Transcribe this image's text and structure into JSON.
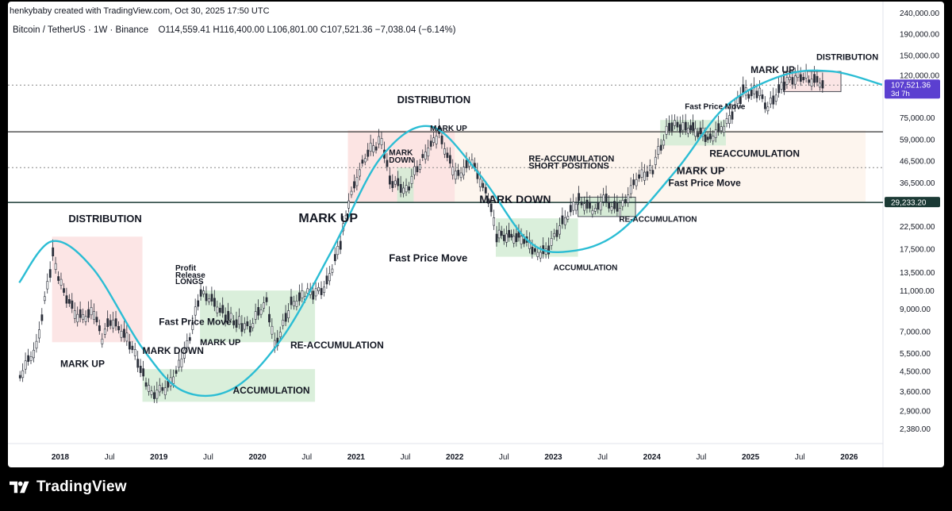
{
  "header": {
    "credit": "henkybaby created with TradingView.com, Oct 30, 2025 17:50 UTC",
    "symbol": "Bitcoin / TetherUS · 1W · Binance",
    "ohlc": "O114,559.41 H116,400.00 L106,801.00 C107,521.36 −7,038.04 (−6.14%)"
  },
  "footer": {
    "brand": "TradingView"
  },
  "colors": {
    "up": "#26a69a",
    "down": "#ef5350",
    "candle": "#2a2e39",
    "curve": "#2bbdd4",
    "green_zone": "#c8e6c9",
    "red_zone": "#fbd5d5",
    "current_price_tag": "#5b3fd0",
    "level_tag": "#1b3a35"
  },
  "chart_data": {
    "type": "line",
    "title": "",
    "xlabel": "",
    "ylabel": "",
    "y_scale": "log",
    "ylim": [
      2000,
      250000
    ],
    "x_range": [
      "2017-08",
      "2026-06"
    ],
    "x_ticks": [
      "2018",
      "Jul",
      "2019",
      "Jul",
      "2020",
      "Jul",
      "2021",
      "Jul",
      "2022",
      "Jul",
      "2023",
      "Jul",
      "2024",
      "Jul",
      "2025",
      "Jul",
      "2026"
    ],
    "y_ticks": [
      "240,000.00",
      "190,000.00",
      "150,000.00",
      "120,000.00",
      "75,000.00",
      "59,000.00",
      "46,500.00",
      "36,500.00",
      "22,500.00",
      "17,500.00",
      "13,500.00",
      "11,000.00",
      "9,000.00",
      "7,000.00",
      "5,500.00",
      "4,500.00",
      "3,600.00",
      "2,900.00",
      "2,380.00"
    ],
    "y_tick_values": [
      240000,
      190000,
      150000,
      120000,
      75000,
      59000,
      46500,
      36500,
      22500,
      17500,
      13500,
      11000,
      9000,
      7000,
      5500,
      4500,
      3600,
      2900,
      2380
    ],
    "price_tags": [
      {
        "value": 107521.36,
        "label": "107,521.36",
        "sub": "3d 7h",
        "color": "#5b3fd0"
      },
      {
        "value": 29233.2,
        "label": "29,233.20",
        "color": "#1b3a35"
      }
    ],
    "series": [
      {
        "kind": "weekly_close_path",
        "points": [
          {
            "d": "2017-08",
            "p": 4200
          },
          {
            "d": "2017-10",
            "p": 5800
          },
          {
            "d": "2017-12",
            "p": 16000
          },
          {
            "d": "2018-01",
            "p": 11500
          },
          {
            "d": "2018-02",
            "p": 9500
          },
          {
            "d": "2018-03",
            "p": 8000
          },
          {
            "d": "2018-05",
            "p": 8400
          },
          {
            "d": "2018-06",
            "p": 6400
          },
          {
            "d": "2018-07",
            "p": 7800
          },
          {
            "d": "2018-09",
            "p": 6500
          },
          {
            "d": "2018-11",
            "p": 4300
          },
          {
            "d": "2018-12",
            "p": 3400
          },
          {
            "d": "2019-02",
            "p": 3700
          },
          {
            "d": "2019-04",
            "p": 5200
          },
          {
            "d": "2019-06",
            "p": 10500
          },
          {
            "d": "2019-07",
            "p": 10000
          },
          {
            "d": "2019-09",
            "p": 8200
          },
          {
            "d": "2019-11",
            "p": 7400
          },
          {
            "d": "2019-12",
            "p": 7200
          },
          {
            "d": "2020-02",
            "p": 9800
          },
          {
            "d": "2020-03",
            "p": 5800
          },
          {
            "d": "2020-05",
            "p": 9300
          },
          {
            "d": "2020-07",
            "p": 10500
          },
          {
            "d": "2020-09",
            "p": 10800
          },
          {
            "d": "2020-11",
            "p": 18000
          },
          {
            "d": "2020-12",
            "p": 28900
          },
          {
            "d": "2021-02",
            "p": 48000
          },
          {
            "d": "2021-04",
            "p": 58000
          },
          {
            "d": "2021-05",
            "p": 37000
          },
          {
            "d": "2021-07",
            "p": 33000
          },
          {
            "d": "2021-09",
            "p": 47000
          },
          {
            "d": "2021-11",
            "p": 62000
          },
          {
            "d": "2022-01",
            "p": 38000
          },
          {
            "d": "2022-03",
            "p": 45000
          },
          {
            "d": "2022-05",
            "p": 30000
          },
          {
            "d": "2022-06",
            "p": 20000
          },
          {
            "d": "2022-09",
            "p": 19500
          },
          {
            "d": "2022-11",
            "p": 16500
          },
          {
            "d": "2022-12",
            "p": 16600
          },
          {
            "d": "2023-02",
            "p": 23000
          },
          {
            "d": "2023-04",
            "p": 29500
          },
          {
            "d": "2023-06",
            "p": 26000
          },
          {
            "d": "2023-07",
            "p": 29800
          },
          {
            "d": "2023-09",
            "p": 26000
          },
          {
            "d": "2023-11",
            "p": 37000
          },
          {
            "d": "2024-01",
            "p": 42000
          },
          {
            "d": "2024-03",
            "p": 68000
          },
          {
            "d": "2024-05",
            "p": 67000
          },
          {
            "d": "2024-08",
            "p": 59000
          },
          {
            "d": "2024-10",
            "p": 69000
          },
          {
            "d": "2024-12",
            "p": 98000
          },
          {
            "d": "2025-02",
            "p": 96000
          },
          {
            "d": "2025-03",
            "p": 82000
          },
          {
            "d": "2025-04",
            "p": 94000
          },
          {
            "d": "2025-05",
            "p": 108000
          },
          {
            "d": "2025-07",
            "p": 118000
          },
          {
            "d": "2025-08",
            "p": 113000
          },
          {
            "d": "2025-10",
            "p": 107521
          }
        ]
      }
    ],
    "cycle_curve": [
      {
        "d": "2017-08",
        "p": 12000
      },
      {
        "d": "2017-12",
        "p": 19000
      },
      {
        "d": "2018-05",
        "p": 14000
      },
      {
        "d": "2018-11",
        "p": 5800
      },
      {
        "d": "2019-04",
        "p": 3600
      },
      {
        "d": "2019-10",
        "p": 3700
      },
      {
        "d": "2020-04",
        "p": 6500
      },
      {
        "d": "2020-10",
        "p": 17000
      },
      {
        "d": "2021-04",
        "p": 48000
      },
      {
        "d": "2021-10",
        "p": 68000
      },
      {
        "d": "2022-04",
        "p": 40000
      },
      {
        "d": "2022-10",
        "p": 19000
      },
      {
        "d": "2023-03",
        "p": 17000
      },
      {
        "d": "2023-09",
        "p": 21000
      },
      {
        "d": "2024-04",
        "p": 42000
      },
      {
        "d": "2024-10",
        "p": 85000
      },
      {
        "d": "2025-05",
        "p": 120000
      },
      {
        "d": "2025-11",
        "p": 125000
      },
      {
        "d": "2026-05",
        "p": 108000
      }
    ],
    "zones": [
      {
        "from": "2017-12",
        "to": "2018-11",
        "low": 6200,
        "high": 20000,
        "color": "red"
      },
      {
        "from": "2018-11",
        "to": "2020-08",
        "low": 3200,
        "high": 4600,
        "color": "green"
      },
      {
        "from": "2019-06",
        "to": "2020-08",
        "low": 6200,
        "high": 11000,
        "color": "green"
      },
      {
        "from": "2020-12",
        "to": "2021-06",
        "low": 29233,
        "high": 65000,
        "color": "red"
      },
      {
        "from": "2021-06",
        "to": "2022-01",
        "low": 29233,
        "high": 65000,
        "color": "red"
      },
      {
        "from": "2020-12",
        "to": "2026-03",
        "low": 29233,
        "high": 65000,
        "color": "band"
      },
      {
        "from": "2021-06",
        "to": "2021-08",
        "low": 29233,
        "high": 43000,
        "color": "green"
      },
      {
        "from": "2022-06",
        "to": "2023-04",
        "low": 16000,
        "high": 24500,
        "color": "green"
      },
      {
        "from": "2023-04",
        "to": "2023-11",
        "low": 25000,
        "high": 31000,
        "color": "green_box"
      },
      {
        "from": "2024-02",
        "to": "2024-10",
        "low": 55000,
        "high": 73000,
        "color": "green"
      },
      {
        "from": "2025-05",
        "to": "2025-12",
        "low": 100000,
        "high": 125000,
        "color": "red_box"
      }
    ],
    "horizontal_levels": [
      {
        "value": 64000,
        "style": "solid"
      },
      {
        "value": 29233.2,
        "style": "solid"
      },
      {
        "value": 43000,
        "style": "dotted"
      },
      {
        "value": 107521.36,
        "style": "dotted"
      }
    ],
    "annotations": [
      {
        "text": "DISTRIBUTION",
        "d": "2018-02",
        "p": 23500,
        "size": 13
      },
      {
        "text": "MARK UP",
        "d": "2018-01",
        "p": 4700,
        "size": 12
      },
      {
        "text": "MARK DOWN",
        "d": "2018-11",
        "p": 5450,
        "size": 12
      },
      {
        "text": "Fast Price Move",
        "d": "2019-01",
        "p": 7500,
        "size": 12
      },
      {
        "text": "Profit",
        "d": "2019-03",
        "p": 13700,
        "size": 10
      },
      {
        "text": "Release",
        "d": "2019-03",
        "p": 12700,
        "size": 10
      },
      {
        "text": "LONGS",
        "d": "2019-03",
        "p": 11800,
        "size": 10
      },
      {
        "text": "MARK UP",
        "d": "2019-06",
        "p": 6000,
        "size": 11
      },
      {
        "text": "ACCUMULATION",
        "d": "2019-10",
        "p": 3500,
        "size": 12
      },
      {
        "text": "RE-ACCUMULATION",
        "d": "2020-05",
        "p": 5800,
        "size": 12
      },
      {
        "text": "MARK UP",
        "d": "2020-06",
        "p": 23500,
        "size": 16
      },
      {
        "text": "Fast Price Move",
        "d": "2021-05",
        "p": 15200,
        "size": 13
      },
      {
        "text": "DISTRIBUTION",
        "d": "2021-06",
        "p": 88000,
        "size": 13
      },
      {
        "text": "MARK UP",
        "d": "2021-10",
        "p": 64500,
        "size": 10
      },
      {
        "text": "MARK",
        "d": "2021-05",
        "p": 49500,
        "size": 10
      },
      {
        "text": "DOWN",
        "d": "2021-05",
        "p": 45500,
        "size": 10
      },
      {
        "text": "RE-ACCUMULATION",
        "d": "2022-10",
        "p": 46000,
        "size": 11
      },
      {
        "text": "SHORT POSITIONS",
        "d": "2022-10",
        "p": 42500,
        "size": 11
      },
      {
        "text": "MARK DOWN",
        "d": "2022-04",
        "p": 29000,
        "size": 14
      },
      {
        "text": "ACCUMULATION",
        "d": "2023-01",
        "p": 13800,
        "size": 10
      },
      {
        "text": "RE-ACCUMULATION",
        "d": "2023-09",
        "p": 23600,
        "size": 10
      },
      {
        "text": "Fast Price Move",
        "d": "2024-05",
        "p": 82500,
        "size": 10
      },
      {
        "text": "REACCUMULATION",
        "d": "2024-08",
        "p": 48500,
        "size": 12
      },
      {
        "text": "MARK UP",
        "d": "2024-04",
        "p": 40000,
        "size": 13
      },
      {
        "text": "Fast Price Move",
        "d": "2024-03",
        "p": 35000,
        "size": 12
      },
      {
        "text": "MARK UP",
        "d": "2025-01",
        "p": 123000,
        "size": 12
      },
      {
        "text": "DISTRIBUTION",
        "d": "2025-09",
        "p": 142000,
        "size": 11
      }
    ],
    "grid": true,
    "legend": "none"
  }
}
